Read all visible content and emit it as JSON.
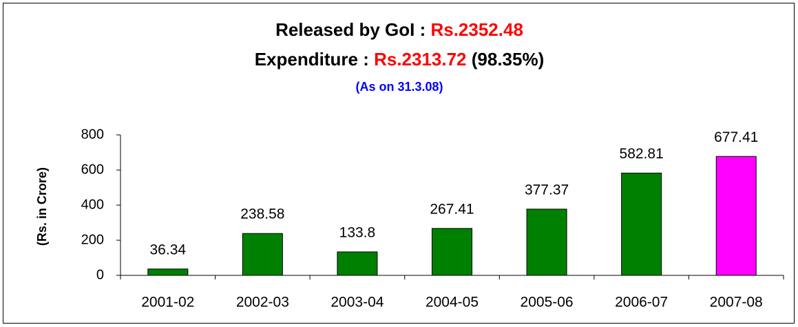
{
  "chart_data": {
    "type": "bar",
    "title_lines": [
      [
        {
          "text": "Released by GoI : ",
          "color": "#000000"
        },
        {
          "text": "Rs.2352.48",
          "color": "#ff0000"
        }
      ],
      [
        {
          "text": "Expenditure : ",
          "color": "#000000"
        },
        {
          "text": "Rs.2313.72",
          "color": "#ff0000"
        },
        {
          "text": " (98.35%)",
          "color": "#000000"
        }
      ]
    ],
    "subtitle": "(As on 31.3.08)",
    "subtitle_color": "#0000ff",
    "y_label": "(Rs. in Crore)",
    "categories": [
      "2001-02",
      "2002-03",
      "2003-04",
      "2004-05",
      "2005-06",
      "2006-07",
      "2007-08"
    ],
    "values": [
      36.34,
      238.58,
      133.8,
      267.41,
      377.37,
      582.81,
      677.41
    ],
    "colors": [
      "#008000",
      "#008000",
      "#008000",
      "#008000",
      "#008000",
      "#008000",
      "#ff00ff"
    ],
    "ylim": [
      0,
      800
    ],
    "yticks": [
      0,
      200,
      400,
      600,
      800
    ],
    "grid": false
  }
}
